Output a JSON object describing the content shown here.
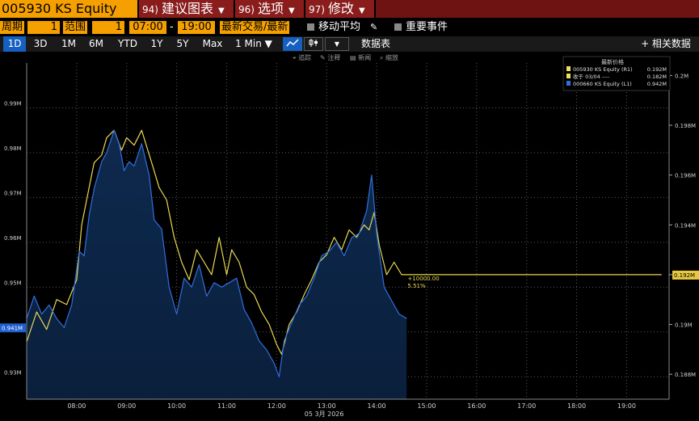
{
  "header": {
    "ticker": "005930 KS Equity",
    "menu": [
      {
        "num": "94)",
        "label": "建议图表"
      },
      {
        "num": "96)",
        "label": "选项"
      },
      {
        "num": "97)",
        "label": "修改"
      }
    ]
  },
  "controls": {
    "period_label": "周期",
    "period_value": "1",
    "range_label": "范围",
    "range_value": "1",
    "time_start": "07:00",
    "time_sep": "-",
    "time_end": "19:00",
    "last_trade": "最新交易/最新",
    "moving_avg": "移动平均",
    "events": "重要事件"
  },
  "periods": [
    "1D",
    "3D",
    "1M",
    "6M",
    "YTD",
    "1Y",
    "5Y",
    "Max"
  ],
  "interval": "1 Min ▼",
  "toolbar": {
    "data_table": "数据表",
    "related_data": "+ 相关数据"
  },
  "minitools": [
    "追踪",
    "注释",
    "新闻",
    "缩放"
  ],
  "legend": {
    "header": "最新价格",
    "rows": [
      {
        "name": "005930 KS Equity  (R1)",
        "value": "0.192M",
        "color": "#f0e060"
      },
      {
        "name": "收于 03/04 ----",
        "value": "0.182M",
        "color": "#f0e060"
      },
      {
        "name": "000660 KS Equity  (L1)",
        "value": "0.942M",
        "color": "#2f6fe0"
      }
    ]
  },
  "annotation": {
    "line1": "+10000.00",
    "line2": "5.51%"
  },
  "badges": {
    "left": "0.941M",
    "right": "0.192M"
  },
  "date_label": "05 3月 2026",
  "chart_data": {
    "type": "line",
    "x_ticks": [
      "08:00",
      "09:00",
      "10:00",
      "11:00",
      "12:00",
      "13:00",
      "14:00",
      "15:00",
      "16:00",
      "17:00",
      "18:00",
      "19:00"
    ],
    "left_axis": {
      "ticks": [
        "0.93M",
        "0.94M",
        "0.95M",
        "0.96M",
        "0.97M",
        "0.98M",
        "0.99M"
      ],
      "ylim": [
        0.925,
        1.0
      ]
    },
    "right_axis": {
      "ticks": [
        "0.188M",
        "0.19M",
        "0.192M",
        "0.194M",
        "0.196M",
        "0.198M",
        "0.2M"
      ],
      "ylim": [
        0.187,
        0.2005
      ]
    },
    "series": [
      {
        "name": "005930 KS Equity (R1)",
        "axis": "right",
        "color": "#e8d850",
        "values": [
          [
            7.0,
            0.1893
          ],
          [
            7.2,
            0.1905
          ],
          [
            7.4,
            0.1898
          ],
          [
            7.6,
            0.191
          ],
          [
            7.8,
            0.1908
          ],
          [
            8.0,
            0.1918
          ],
          [
            8.1,
            0.194
          ],
          [
            8.2,
            0.195
          ],
          [
            8.35,
            0.1965
          ],
          [
            8.5,
            0.1968
          ],
          [
            8.6,
            0.1975
          ],
          [
            8.75,
            0.1978
          ],
          [
            8.9,
            0.197
          ],
          [
            9.0,
            0.1975
          ],
          [
            9.15,
            0.1972
          ],
          [
            9.3,
            0.1978
          ],
          [
            9.5,
            0.1965
          ],
          [
            9.65,
            0.1955
          ],
          [
            9.8,
            0.195
          ],
          [
            9.95,
            0.1935
          ],
          [
            10.1,
            0.1925
          ],
          [
            10.25,
            0.1918
          ],
          [
            10.4,
            0.193
          ],
          [
            10.55,
            0.1925
          ],
          [
            10.7,
            0.192
          ],
          [
            10.85,
            0.1935
          ],
          [
            11.0,
            0.192
          ],
          [
            11.1,
            0.193
          ],
          [
            11.25,
            0.1925
          ],
          [
            11.4,
            0.1915
          ],
          [
            11.55,
            0.1912
          ],
          [
            11.7,
            0.1905
          ],
          [
            11.85,
            0.19
          ],
          [
            12.0,
            0.1892
          ],
          [
            12.1,
            0.1888
          ],
          [
            12.25,
            0.19
          ],
          [
            12.4,
            0.1905
          ],
          [
            12.55,
            0.1912
          ],
          [
            12.7,
            0.1918
          ],
          [
            12.85,
            0.1925
          ],
          [
            13.0,
            0.1928
          ],
          [
            13.15,
            0.1935
          ],
          [
            13.3,
            0.193
          ],
          [
            13.45,
            0.1938
          ],
          [
            13.6,
            0.1935
          ],
          [
            13.75,
            0.194
          ],
          [
            13.85,
            0.1938
          ],
          [
            13.95,
            0.1945
          ],
          [
            14.05,
            0.1932
          ],
          [
            14.2,
            0.192
          ],
          [
            14.35,
            0.1925
          ],
          [
            14.5,
            0.192
          ],
          [
            15.0,
            0.192
          ],
          [
            19.7,
            0.192
          ]
        ]
      },
      {
        "name": "000660 KS Equity (L1)",
        "axis": "left",
        "color": "#2f6fe0",
        "fill": true,
        "values": [
          [
            7.0,
            0.943
          ],
          [
            7.15,
            0.948
          ],
          [
            7.3,
            0.944
          ],
          [
            7.45,
            0.946
          ],
          [
            7.6,
            0.943
          ],
          [
            7.75,
            0.941
          ],
          [
            7.9,
            0.946
          ],
          [
            8.05,
            0.958
          ],
          [
            8.15,
            0.957
          ],
          [
            8.25,
            0.966
          ],
          [
            8.35,
            0.972
          ],
          [
            8.5,
            0.978
          ],
          [
            8.6,
            0.98
          ],
          [
            8.75,
            0.985
          ],
          [
            8.85,
            0.982
          ],
          [
            8.95,
            0.976
          ],
          [
            9.05,
            0.978
          ],
          [
            9.15,
            0.977
          ],
          [
            9.3,
            0.982
          ],
          [
            9.45,
            0.975
          ],
          [
            9.55,
            0.965
          ],
          [
            9.7,
            0.963
          ],
          [
            9.85,
            0.95
          ],
          [
            10.0,
            0.944
          ],
          [
            10.15,
            0.952
          ],
          [
            10.3,
            0.95
          ],
          [
            10.45,
            0.955
          ],
          [
            10.6,
            0.948
          ],
          [
            10.75,
            0.951
          ],
          [
            10.9,
            0.95
          ],
          [
            11.05,
            0.951
          ],
          [
            11.2,
            0.952
          ],
          [
            11.35,
            0.945
          ],
          [
            11.5,
            0.942
          ],
          [
            11.65,
            0.938
          ],
          [
            11.8,
            0.936
          ],
          [
            11.95,
            0.933
          ],
          [
            12.05,
            0.93
          ],
          [
            12.15,
            0.938
          ],
          [
            12.3,
            0.942
          ],
          [
            12.45,
            0.946
          ],
          [
            12.6,
            0.948
          ],
          [
            12.75,
            0.952
          ],
          [
            12.9,
            0.957
          ],
          [
            13.05,
            0.958
          ],
          [
            13.2,
            0.96
          ],
          [
            13.35,
            0.957
          ],
          [
            13.5,
            0.961
          ],
          [
            13.65,
            0.962
          ],
          [
            13.8,
            0.967
          ],
          [
            13.9,
            0.975
          ],
          [
            14.0,
            0.962
          ],
          [
            14.15,
            0.95
          ],
          [
            14.3,
            0.947
          ],
          [
            14.45,
            0.944
          ],
          [
            14.6,
            0.943
          ]
        ]
      }
    ]
  }
}
